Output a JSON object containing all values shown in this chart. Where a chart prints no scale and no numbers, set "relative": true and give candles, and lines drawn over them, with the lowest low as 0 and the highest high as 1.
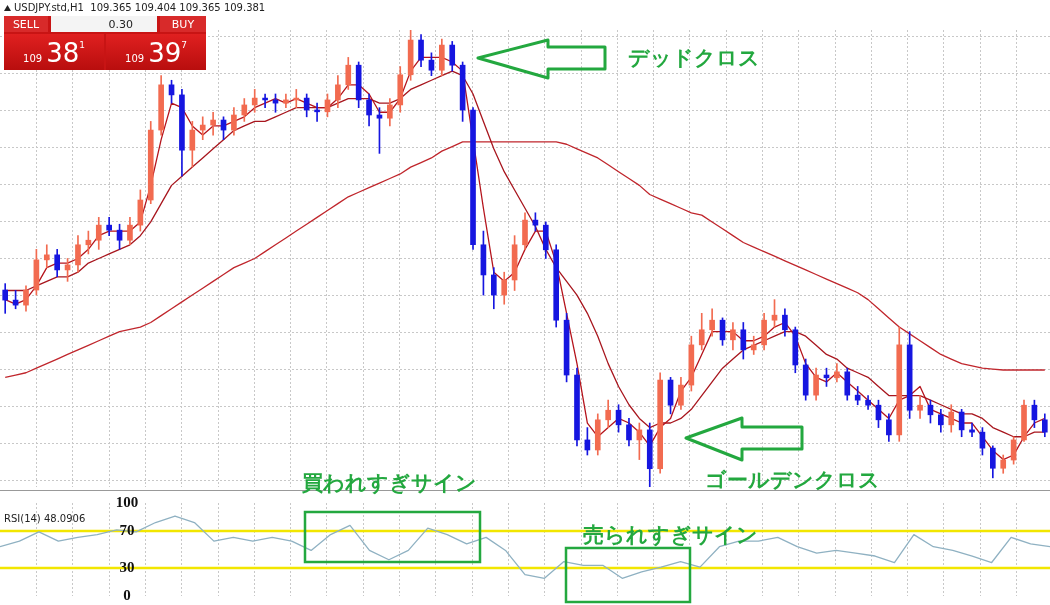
{
  "chart_data": [
    {
      "type": "candlestick",
      "title": "USDJPY.std,H1  109.365 109.404 109.365 109.381",
      "relative": true,
      "grid": true,
      "tick_labels": false,
      "categories": [
        null,
        null,
        null,
        null,
        null,
        null,
        null,
        null,
        null,
        null,
        null,
        null,
        null,
        null,
        null,
        null,
        null,
        null,
        null,
        null,
        null,
        null,
        null,
        null,
        null,
        null,
        null,
        null,
        null,
        null,
        null,
        null,
        null,
        null,
        null,
        null,
        null,
        null,
        null,
        null,
        null,
        null,
        null,
        null,
        null,
        null,
        null,
        null,
        null,
        null,
        null,
        null,
        null,
        null,
        null,
        null,
        null,
        null,
        null,
        null,
        null,
        null,
        null,
        null,
        null,
        null,
        null,
        null,
        null,
        null,
        null,
        null,
        null,
        null,
        null,
        null,
        null,
        null,
        null,
        null,
        null,
        null,
        null,
        null,
        null,
        null,
        null,
        null,
        null,
        null,
        null,
        null,
        null,
        null,
        null,
        null,
        null,
        null,
        null,
        null,
        null
      ],
      "ohlc": [
        [
          0.431,
          0.445,
          0.38,
          0.409
        ],
        [
          0.409,
          0.43,
          0.39,
          0.398
        ],
        [
          0.398,
          0.44,
          0.385,
          0.431
        ],
        [
          0.431,
          0.52,
          0.42,
          0.497
        ],
        [
          0.497,
          0.53,
          0.48,
          0.508
        ],
        [
          0.508,
          0.52,
          0.46,
          0.475
        ],
        [
          0.475,
          0.5,
          0.45,
          0.486
        ],
        [
          0.486,
          0.55,
          0.47,
          0.53
        ],
        [
          0.53,
          0.56,
          0.51,
          0.54
        ],
        [
          0.54,
          0.59,
          0.52,
          0.573
        ],
        [
          0.573,
          0.59,
          0.55,
          0.562
        ],
        [
          0.562,
          0.575,
          0.52,
          0.54
        ],
        [
          0.54,
          0.59,
          0.53,
          0.573
        ],
        [
          0.573,
          0.65,
          0.56,
          0.628
        ],
        [
          0.628,
          0.8,
          0.62,
          0.781
        ],
        [
          0.781,
          0.9,
          0.77,
          0.88
        ],
        [
          0.88,
          0.89,
          0.84,
          0.858
        ],
        [
          0.858,
          0.87,
          0.68,
          0.737
        ],
        [
          0.737,
          0.8,
          0.7,
          0.781
        ],
        [
          0.781,
          0.81,
          0.76,
          0.792
        ],
        [
          0.792,
          0.82,
          0.77,
          0.803
        ],
        [
          0.803,
          0.81,
          0.76,
          0.781
        ],
        [
          0.781,
          0.83,
          0.77,
          0.814
        ],
        [
          0.814,
          0.85,
          0.8,
          0.836
        ],
        [
          0.836,
          0.87,
          0.82,
          0.851
        ],
        [
          0.851,
          0.86,
          0.83,
          0.847
        ],
        [
          0.847,
          0.86,
          0.82,
          0.84
        ],
        [
          0.84,
          0.86,
          0.83,
          0.847
        ],
        [
          0.847,
          0.87,
          0.83,
          0.851
        ],
        [
          0.851,
          0.86,
          0.81,
          0.825
        ],
        [
          0.825,
          0.84,
          0.8,
          0.821
        ],
        [
          0.821,
          0.86,
          0.81,
          0.847
        ],
        [
          0.847,
          0.9,
          0.83,
          0.88
        ],
        [
          0.88,
          0.94,
          0.87,
          0.923
        ],
        [
          0.923,
          0.93,
          0.83,
          0.847
        ],
        [
          0.847,
          0.86,
          0.79,
          0.814
        ],
        [
          0.814,
          0.83,
          0.73,
          0.807
        ],
        [
          0.807,
          0.85,
          0.79,
          0.836
        ],
        [
          0.836,
          0.92,
          0.82,
          0.902
        ],
        [
          0.902,
          1,
          0.89,
          0.978
        ],
        [
          0.978,
          0.99,
          0.92,
          0.934
        ],
        [
          0.934,
          0.95,
          0.9,
          0.912
        ],
        [
          0.912,
          0.98,
          0.9,
          0.967
        ],
        [
          0.967,
          0.975,
          0.91,
          0.923
        ],
        [
          0.923,
          0.93,
          0.8,
          0.825
        ],
        [
          0.825,
          0.83,
          0.52,
          0.53
        ],
        [
          0.53,
          0.56,
          0.42,
          0.464
        ],
        [
          0.464,
          0.48,
          0.39,
          0.42
        ],
        [
          0.42,
          0.47,
          0.4,
          0.453
        ],
        [
          0.453,
          0.55,
          0.43,
          0.53
        ],
        [
          0.53,
          0.6,
          0.52,
          0.584
        ],
        [
          0.584,
          0.6,
          0.56,
          0.573
        ],
        [
          0.573,
          0.58,
          0.5,
          0.519
        ],
        [
          0.519,
          0.53,
          0.35,
          0.365
        ],
        [
          0.365,
          0.38,
          0.23,
          0.245
        ],
        [
          0.245,
          0.26,
          0.09,
          0.103
        ],
        [
          0.103,
          0.13,
          0.07,
          0.081
        ],
        [
          0.081,
          0.16,
          0.07,
          0.147
        ],
        [
          0.147,
          0.19,
          0.13,
          0.168
        ],
        [
          0.168,
          0.18,
          0.12,
          0.136
        ],
        [
          0.136,
          0.15,
          0.09,
          0.103
        ],
        [
          0.103,
          0.14,
          0.06,
          0.125
        ],
        [
          0.125,
          0.14,
          0,
          0.04
        ],
        [
          0.04,
          0.25,
          0.03,
          0.234
        ],
        [
          0.234,
          0.24,
          0.16,
          0.179
        ],
        [
          0.179,
          0.24,
          0.17,
          0.223
        ],
        [
          0.223,
          0.33,
          0.21,
          0.311
        ],
        [
          0.311,
          0.38,
          0.3,
          0.344
        ],
        [
          0.344,
          0.39,
          0.33,
          0.365
        ],
        [
          0.365,
          0.37,
          0.31,
          0.322
        ],
        [
          0.322,
          0.36,
          0.3,
          0.344
        ],
        [
          0.344,
          0.36,
          0.28,
          0.3
        ],
        [
          0.3,
          0.33,
          0.29,
          0.311
        ],
        [
          0.311,
          0.38,
          0.3,
          0.365
        ],
        [
          0.365,
          0.41,
          0.35,
          0.376
        ],
        [
          0.376,
          0.39,
          0.33,
          0.344
        ],
        [
          0.344,
          0.35,
          0.25,
          0.267
        ],
        [
          0.267,
          0.28,
          0.19,
          0.201
        ],
        [
          0.201,
          0.26,
          0.19,
          0.245
        ],
        [
          0.245,
          0.26,
          0.22,
          0.239
        ],
        [
          0.239,
          0.27,
          0.23,
          0.252
        ],
        [
          0.252,
          0.26,
          0.19,
          0.201
        ],
        [
          0.201,
          0.22,
          0.18,
          0.19
        ],
        [
          0.19,
          0.2,
          0.17,
          0.179
        ],
        [
          0.179,
          0.19,
          0.13,
          0.147
        ],
        [
          0.147,
          0.16,
          0.1,
          0.114
        ],
        [
          0.114,
          0.35,
          0.1,
          0.311
        ],
        [
          0.311,
          0.34,
          0.15,
          0.168
        ],
        [
          0.168,
          0.2,
          0.15,
          0.179
        ],
        [
          0.179,
          0.19,
          0.14,
          0.158
        ],
        [
          0.158,
          0.17,
          0.12,
          0.136
        ],
        [
          0.136,
          0.18,
          0.12,
          0.164
        ],
        [
          0.164,
          0.17,
          0.11,
          0.125
        ],
        [
          0.125,
          0.14,
          0.11,
          0.12
        ],
        [
          0.12,
          0.13,
          0.07,
          0.085
        ],
        [
          0.085,
          0.09,
          0.02,
          0.041
        ],
        [
          0.041,
          0.07,
          0.03,
          0.059
        ],
        [
          0.059,
          0.11,
          0.05,
          0.103
        ],
        [
          0.103,
          0.19,
          0.1,
          0.179
        ],
        [
          0.179,
          0.19,
          0.13,
          0.147
        ],
        [
          0.147,
          0.16,
          0.11,
          0.12
        ]
      ],
      "series": [
        {
          "type": "line",
          "color": "#b5141c",
          "values": [
            0.41,
            0.4,
            0.41,
            0.44,
            0.48,
            0.49,
            0.49,
            0.5,
            0.52,
            0.55,
            0.56,
            0.56,
            0.56,
            0.58,
            0.66,
            0.76,
            0.84,
            0.83,
            0.79,
            0.77,
            0.79,
            0.79,
            0.8,
            0.81,
            0.83,
            0.84,
            0.85,
            0.84,
            0.85,
            0.84,
            0.83,
            0.83,
            0.85,
            0.88,
            0.88,
            0.86,
            0.82,
            0.82,
            0.85,
            0.91,
            0.94,
            0.94,
            0.94,
            0.93,
            0.91,
            0.76,
            0.61,
            0.47,
            0.45,
            0.47,
            0.52,
            0.56,
            0.56,
            0.49,
            0.38,
            0.27,
            0.14,
            0.11,
            0.13,
            0.15,
            0.14,
            0.12,
            0.09,
            0.13,
            0.15,
            0.21,
            0.24,
            0.29,
            0.34,
            0.34,
            0.34,
            0.32,
            0.32,
            0.33,
            0.35,
            0.36,
            0.33,
            0.27,
            0.24,
            0.23,
            0.25,
            0.23,
            0.21,
            0.19,
            0.17,
            0.15,
            0.19,
            0.2,
            0.22,
            0.17,
            0.16,
            0.15,
            0.14,
            0.14,
            0.11,
            0.08,
            0.06,
            0.07,
            0.11,
            0.14,
            0.15
          ]
        },
        {
          "type": "line",
          "color": "#a8161e",
          "values": [
            0.43,
            0.43,
            0.43,
            0.44,
            0.45,
            0.46,
            0.46,
            0.47,
            0.49,
            0.5,
            0.51,
            0.52,
            0.53,
            0.55,
            0.58,
            0.62,
            0.66,
            0.68,
            0.7,
            0.72,
            0.74,
            0.76,
            0.78,
            0.79,
            0.8,
            0.8,
            0.81,
            0.82,
            0.83,
            0.83,
            0.83,
            0.83,
            0.84,
            0.85,
            0.85,
            0.85,
            0.84,
            0.84,
            0.85,
            0.87,
            0.88,
            0.89,
            0.9,
            0.91,
            0.9,
            0.86,
            0.8,
            0.74,
            0.69,
            0.65,
            0.61,
            0.57,
            0.52,
            0.48,
            0.45,
            0.42,
            0.38,
            0.33,
            0.27,
            0.22,
            0.18,
            0.15,
            0.13,
            0.14,
            0.14,
            0.15,
            0.17,
            0.2,
            0.23,
            0.26,
            0.28,
            0.3,
            0.31,
            0.32,
            0.33,
            0.34,
            0.34,
            0.33,
            0.31,
            0.29,
            0.28,
            0.26,
            0.25,
            0.24,
            0.22,
            0.2,
            0.2,
            0.2,
            0.2,
            0.19,
            0.18,
            0.17,
            0.16,
            0.16,
            0.15,
            0.13,
            0.12,
            0.11,
            0.11,
            0.12,
            0.12
          ]
        },
        {
          "type": "line",
          "color": "#c0262c",
          "values": [
            0.24,
            0.245,
            0.25,
            0.26,
            0.27,
            0.28,
            0.29,
            0.3,
            0.31,
            0.32,
            0.33,
            0.34,
            0.345,
            0.35,
            0.36,
            0.375,
            0.39,
            0.405,
            0.42,
            0.435,
            0.45,
            0.465,
            0.48,
            0.49,
            0.5,
            0.515,
            0.53,
            0.545,
            0.56,
            0.575,
            0.59,
            0.605,
            0.62,
            0.635,
            0.645,
            0.655,
            0.665,
            0.675,
            0.685,
            0.7,
            0.71,
            0.72,
            0.735,
            0.745,
            0.755,
            0.755,
            0.755,
            0.755,
            0.755,
            0.755,
            0.755,
            0.755,
            0.755,
            0.755,
            0.75,
            0.74,
            0.73,
            0.72,
            0.705,
            0.69,
            0.675,
            0.66,
            0.64,
            0.63,
            0.62,
            0.61,
            0.6,
            0.595,
            0.58,
            0.565,
            0.55,
            0.535,
            0.525,
            0.515,
            0.505,
            0.495,
            0.485,
            0.475,
            0.465,
            0.455,
            0.445,
            0.435,
            0.425,
            0.41,
            0.39,
            0.37,
            0.35,
            0.335,
            0.32,
            0.305,
            0.29,
            0.28,
            0.27,
            0.265,
            0.26,
            0.258,
            0.256,
            0.256,
            0.256,
            0.256,
            0.256
          ]
        }
      ],
      "annotations": [
        "デッドクロス",
        "ゴールデンクロス",
        "SELL",
        "0.30",
        "BUY",
        "109",
        "38",
        "1",
        "109",
        "39",
        "7"
      ]
    },
    {
      "type": "line",
      "title": "RSI(14) 48.0906",
      "grid": "x",
      "tick_labels": "y",
      "ylim": [
        0,
        100
      ],
      "yticks": [
        0,
        30,
        70,
        100
      ],
      "categories": [
        null,
        null,
        null,
        null,
        null,
        null,
        null,
        null,
        null,
        null,
        null,
        null,
        null,
        null,
        null,
        null,
        null,
        null,
        null,
        null,
        null,
        null,
        null,
        null,
        null,
        null,
        null,
        null,
        null,
        null,
        null,
        null,
        null,
        null,
        null,
        null,
        null,
        null,
        null,
        null,
        null,
        null,
        null,
        null,
        null,
        null,
        null,
        null,
        null,
        null,
        null,
        null,
        null,
        null,
        null
      ],
      "series": [
        {
          "color": "#8fb1c2",
          "values": [
            53,
            59,
            69,
            59,
            63,
            66,
            71,
            69,
            79,
            86,
            79,
            59,
            63,
            59,
            63,
            59,
            49,
            66,
            76,
            49,
            39,
            49,
            73,
            66,
            56,
            63,
            49,
            23,
            19,
            37,
            33,
            33,
            19,
            26,
            31,
            37,
            31,
            53,
            59,
            59,
            63,
            53,
            46,
            49,
            46,
            43,
            36,
            66,
            53,
            49,
            43,
            36,
            63,
            56,
            53
          ]
        }
      ],
      "ref_lines": [
        {
          "axis": "y",
          "value": 70,
          "color": "#f2e600"
        },
        {
          "axis": "y",
          "value": 30,
          "color": "#f2e600"
        }
      ],
      "annotations": [
        "買われすぎサイン",
        "売られすぎサイン"
      ]
    }
  ]
}
